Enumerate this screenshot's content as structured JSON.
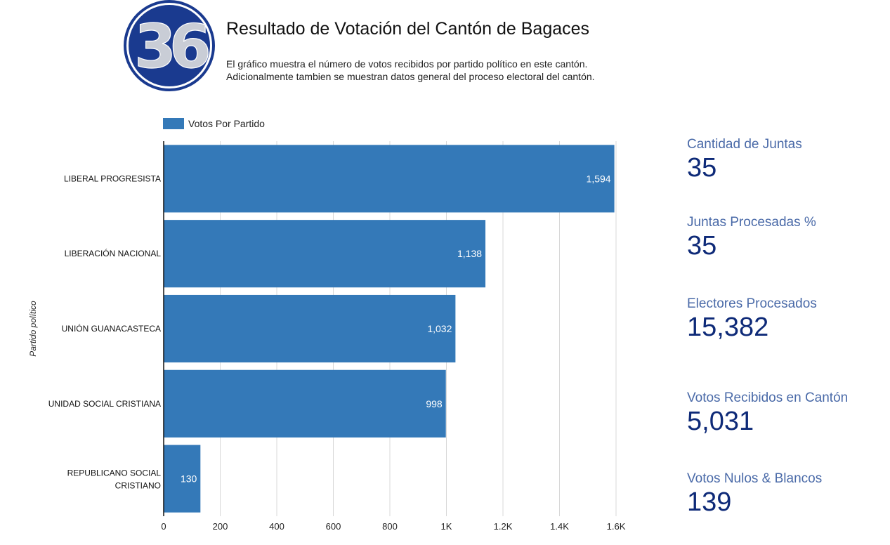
{
  "header": {
    "logo_text": "36",
    "title": "Resultado de Votación del Cantón de Bagaces",
    "description_line1": "El gráfico muestra el número de votos recibidos por partido político en este cantón.",
    "description_line2": "Adicionalmente tambien se muestran datos general del proceso electoral del cantón."
  },
  "colors": {
    "bar": "#3479b8",
    "grid": "#d8d8d8",
    "logo_ring": "#1a3a8f",
    "kpi_label": "#4a6aa8",
    "kpi_value": "#0e2a78"
  },
  "chart_data": {
    "type": "bar",
    "orientation": "horizontal",
    "categories": [
      "LIBERAL PROGRESISTA",
      "LIBERACIÓN NACIONAL",
      "UNIÓN GUANACASTECA",
      "UNIDAD SOCIAL CRISTIANA",
      "REPUBLICANO SOCIAL CRISTIANO"
    ],
    "series": [
      {
        "name": "Votos Por Partido",
        "values": [
          1594,
          1138,
          1032,
          998,
          130
        ]
      }
    ],
    "data_labels": [
      "1,594",
      "1,138",
      "1,032",
      "998",
      "130"
    ],
    "ylabel": "Partido político",
    "xlim": [
      0,
      1600
    ],
    "x_ticks": [
      0,
      200,
      400,
      600,
      800,
      1000,
      1200,
      1400,
      1600
    ],
    "x_tick_labels": [
      "0",
      "200",
      "400",
      "600",
      "800",
      "1K",
      "1.2K",
      "1.4K",
      "1.6K"
    ],
    "grid": true,
    "legend": "top-left"
  },
  "kpis": [
    {
      "label": "Cantidad de Juntas",
      "value": "35"
    },
    {
      "label": "Juntas Procesadas %",
      "value": "35"
    },
    {
      "label": "Electores Procesados",
      "value": "15,382"
    },
    {
      "label": "Votos Recibidos en Cantón",
      "value": "5,031"
    },
    {
      "label": "Votos Nulos & Blancos",
      "value": "139"
    }
  ]
}
